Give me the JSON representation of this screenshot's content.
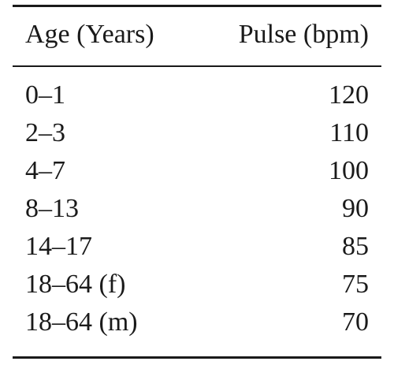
{
  "table": {
    "headers": {
      "age": "Age (Years)",
      "pulse": "Pulse (bpm)"
    },
    "rows": [
      {
        "age": "0–1",
        "pulse": "120"
      },
      {
        "age": "2–3",
        "pulse": "110"
      },
      {
        "age": "4–7",
        "pulse": "100"
      },
      {
        "age": "8–13",
        "pulse": "90"
      },
      {
        "age": "14–17",
        "pulse": "85"
      },
      {
        "age": "18–64 (f)",
        "pulse": "75"
      },
      {
        "age": "18–64 (m)",
        "pulse": "70"
      }
    ]
  }
}
